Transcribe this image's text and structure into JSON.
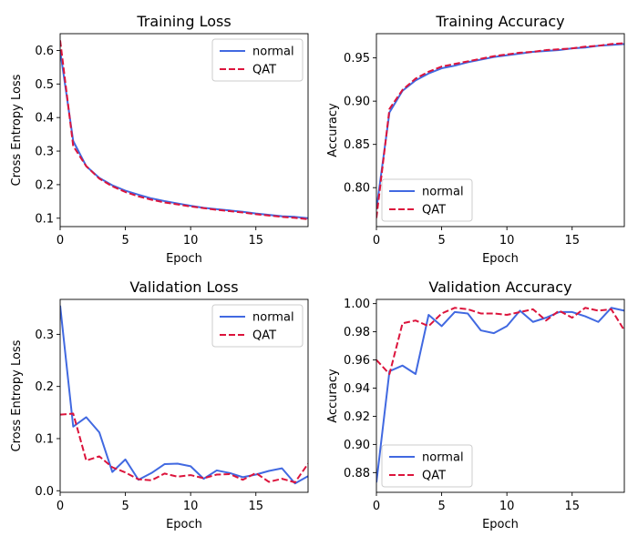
{
  "colors": {
    "normal": "#4169e1",
    "qat": "#dc143c"
  },
  "chart_data": [
    {
      "type": "line",
      "title": "Training Loss",
      "xlabel": "Epoch",
      "ylabel": "Cross Entropy Loss",
      "xlim": [
        0,
        19
      ],
      "ylim": [
        0.075,
        0.65
      ],
      "xticks": [
        0,
        5,
        10,
        15
      ],
      "xtick_labels": [
        "0",
        "5",
        "10",
        "15"
      ],
      "yticks": [
        0.1,
        0.2,
        0.3,
        0.4,
        0.5,
        0.6
      ],
      "ytick_labels": [
        "0.1",
        "0.2",
        "0.3",
        "0.4",
        "0.5",
        "0.6"
      ],
      "legend": "upper-right",
      "grid": false,
      "x": [
        0,
        1,
        2,
        3,
        4,
        5,
        6,
        7,
        8,
        9,
        10,
        11,
        12,
        13,
        14,
        15,
        16,
        17,
        18,
        19
      ],
      "series": [
        {
          "name": "normal",
          "values": [
            0.6,
            0.33,
            0.255,
            0.22,
            0.198,
            0.182,
            0.17,
            0.159,
            0.151,
            0.144,
            0.137,
            0.131,
            0.127,
            0.123,
            0.119,
            0.114,
            0.11,
            0.106,
            0.104,
            0.1
          ]
        },
        {
          "name": "QAT",
          "values": [
            0.63,
            0.315,
            0.255,
            0.218,
            0.195,
            0.178,
            0.165,
            0.155,
            0.147,
            0.141,
            0.135,
            0.13,
            0.125,
            0.121,
            0.117,
            0.112,
            0.108,
            0.104,
            0.101,
            0.097
          ]
        }
      ]
    },
    {
      "type": "line",
      "title": "Training Accuracy",
      "xlabel": "Epoch",
      "ylabel": "Accuracy",
      "xlim": [
        0,
        19
      ],
      "ylim": [
        0.755,
        0.978
      ],
      "xticks": [
        0,
        5,
        10,
        15
      ],
      "xtick_labels": [
        "0",
        "5",
        "10",
        "15"
      ],
      "yticks": [
        0.8,
        0.85,
        0.9,
        0.95
      ],
      "ytick_labels": [
        "0.80",
        "0.85",
        "0.90",
        "0.95"
      ],
      "legend": "lower-left",
      "grid": false,
      "x": [
        0,
        1,
        2,
        3,
        4,
        5,
        6,
        7,
        8,
        9,
        10,
        11,
        12,
        13,
        14,
        15,
        16,
        17,
        18,
        19
      ],
      "series": [
        {
          "name": "normal",
          "values": [
            0.775,
            0.887,
            0.912,
            0.924,
            0.932,
            0.938,
            0.941,
            0.945,
            0.948,
            0.951,
            0.953,
            0.955,
            0.957,
            0.958,
            0.959,
            0.961,
            0.962,
            0.964,
            0.965,
            0.966
          ]
        },
        {
          "name": "QAT",
          "values": [
            0.765,
            0.891,
            0.913,
            0.926,
            0.934,
            0.94,
            0.943,
            0.946,
            0.949,
            0.952,
            0.954,
            0.956,
            0.957,
            0.959,
            0.96,
            0.961,
            0.963,
            0.964,
            0.966,
            0.967
          ]
        }
      ]
    },
    {
      "type": "line",
      "title": "Validation Loss",
      "xlabel": "Epoch",
      "ylabel": "Cross Entropy Loss",
      "xlim": [
        0,
        19
      ],
      "ylim": [
        -0.003,
        0.367
      ],
      "xticks": [
        0,
        5,
        10,
        15
      ],
      "xtick_labels": [
        "0",
        "5",
        "10",
        "15"
      ],
      "yticks": [
        0.0,
        0.1,
        0.2,
        0.3
      ],
      "ytick_labels": [
        "0.0",
        "0.1",
        "0.2",
        "0.3"
      ],
      "legend": "upper-right",
      "grid": false,
      "x": [
        0,
        1,
        2,
        3,
        4,
        5,
        6,
        7,
        8,
        9,
        10,
        11,
        12,
        13,
        14,
        15,
        16,
        17,
        18,
        19
      ],
      "series": [
        {
          "name": "normal",
          "values": [
            0.355,
            0.123,
            0.141,
            0.112,
            0.036,
            0.06,
            0.021,
            0.034,
            0.051,
            0.052,
            0.047,
            0.023,
            0.039,
            0.034,
            0.026,
            0.031,
            0.038,
            0.043,
            0.014,
            0.028
          ]
        },
        {
          "name": "QAT",
          "values": [
            0.146,
            0.148,
            0.058,
            0.066,
            0.045,
            0.035,
            0.022,
            0.02,
            0.033,
            0.027,
            0.03,
            0.024,
            0.031,
            0.032,
            0.021,
            0.034,
            0.017,
            0.023,
            0.016,
            0.052
          ]
        }
      ]
    },
    {
      "type": "line",
      "title": "Validation Accuracy",
      "xlabel": "Epoch",
      "ylabel": "Accuracy",
      "xlim": [
        0,
        19
      ],
      "ylim": [
        0.866,
        1.003
      ],
      "xticks": [
        0,
        5,
        10,
        15
      ],
      "xtick_labels": [
        "0",
        "5",
        "10",
        "15"
      ],
      "yticks": [
        0.88,
        0.9,
        0.92,
        0.94,
        0.96,
        0.98,
        1.0
      ],
      "ytick_labels": [
        "0.88",
        "0.90",
        "0.92",
        "0.94",
        "0.96",
        "0.98",
        "1.00"
      ],
      "legend": "lower-left",
      "grid": false,
      "x": [
        0,
        1,
        2,
        3,
        4,
        5,
        6,
        7,
        8,
        9,
        10,
        11,
        12,
        13,
        14,
        15,
        16,
        17,
        18,
        19
      ],
      "series": [
        {
          "name": "normal",
          "values": [
            0.873,
            0.952,
            0.956,
            0.95,
            0.992,
            0.984,
            0.994,
            0.993,
            0.981,
            0.979,
            0.984,
            0.995,
            0.987,
            0.99,
            0.994,
            0.994,
            0.991,
            0.987,
            0.997,
            0.995
          ]
        },
        {
          "name": "QAT",
          "values": [
            0.96,
            0.95,
            0.986,
            0.988,
            0.984,
            0.993,
            0.997,
            0.996,
            0.993,
            0.993,
            0.992,
            0.994,
            0.996,
            0.988,
            0.995,
            0.99,
            0.997,
            0.995,
            0.996,
            0.981
          ]
        }
      ]
    }
  ]
}
